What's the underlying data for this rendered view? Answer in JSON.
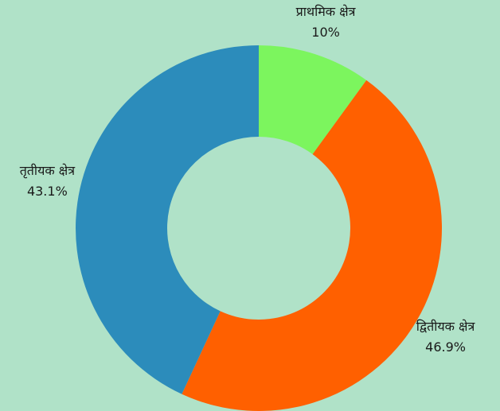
{
  "chart_data": {
    "type": "donut",
    "categories": [
      "प्राथमिक क्षेत्र",
      "द्वितीयक क्षेत्र",
      "तृतीयक क्षेत्र"
    ],
    "values": [
      10,
      46.9,
      43.1
    ],
    "value_labels": [
      "10%",
      "46.9%",
      "43.1%"
    ],
    "colors": [
      "#7cf55e",
      "#ff6000",
      "#2c8cbb"
    ]
  }
}
